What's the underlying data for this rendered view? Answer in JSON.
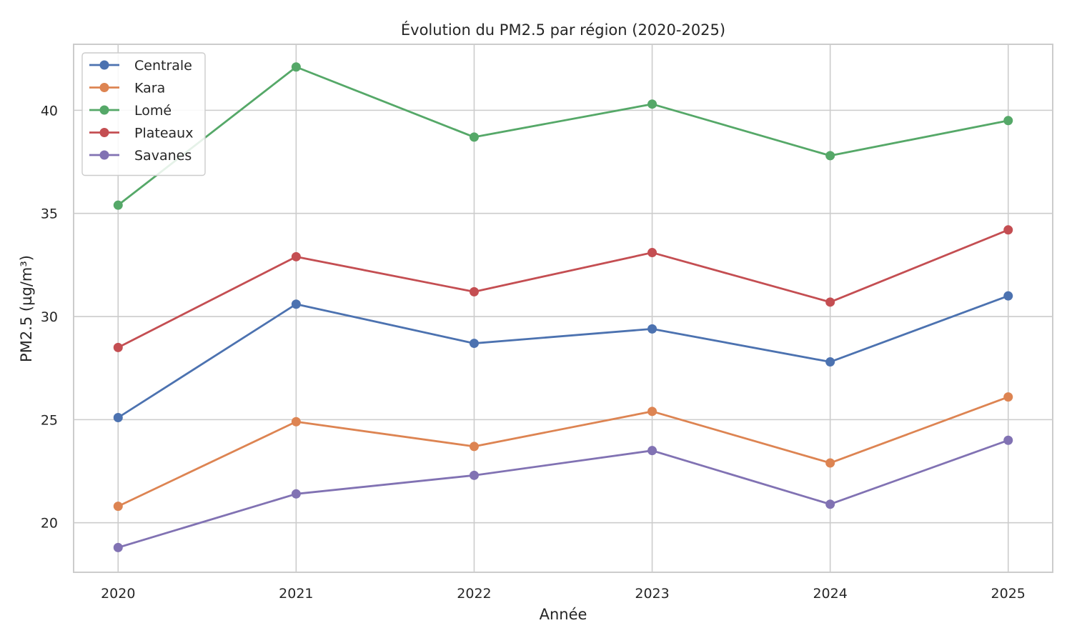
{
  "chart_data": {
    "type": "line",
    "title": "Évolution du PM2.5 par région (2020-2025)",
    "xlabel": "Année",
    "ylabel": "PM2.5 (µg/m³)",
    "x": [
      2020,
      2021,
      2022,
      2023,
      2024,
      2025
    ],
    "x_tick_labels": [
      "2020",
      "2021",
      "2022",
      "2023",
      "2024",
      "2025"
    ],
    "xlim": [
      2019.75,
      2025.25
    ],
    "ylim": [
      17.6,
      43.2
    ],
    "y_ticks": [
      20,
      25,
      30,
      35,
      40
    ],
    "y_tick_labels": [
      "20",
      "25",
      "30",
      "35",
      "40"
    ],
    "grid": true,
    "legend_position": "top-left",
    "series": [
      {
        "name": "Centrale",
        "color": "#4c72b0",
        "values": [
          25.1,
          30.6,
          28.7,
          29.4,
          27.8,
          31.0
        ]
      },
      {
        "name": "Kara",
        "color": "#dd8452",
        "values": [
          20.8,
          24.9,
          23.7,
          25.4,
          22.9,
          26.1
        ]
      },
      {
        "name": "Lomé",
        "color": "#55a868",
        "values": [
          35.4,
          42.1,
          38.7,
          40.3,
          37.8,
          39.5
        ]
      },
      {
        "name": "Plateaux",
        "color": "#c44e52",
        "values": [
          28.5,
          32.9,
          31.2,
          33.1,
          30.7,
          34.2
        ]
      },
      {
        "name": "Savanes",
        "color": "#8172b3",
        "values": [
          18.8,
          21.4,
          22.3,
          23.5,
          20.9,
          24.0
        ]
      }
    ]
  }
}
